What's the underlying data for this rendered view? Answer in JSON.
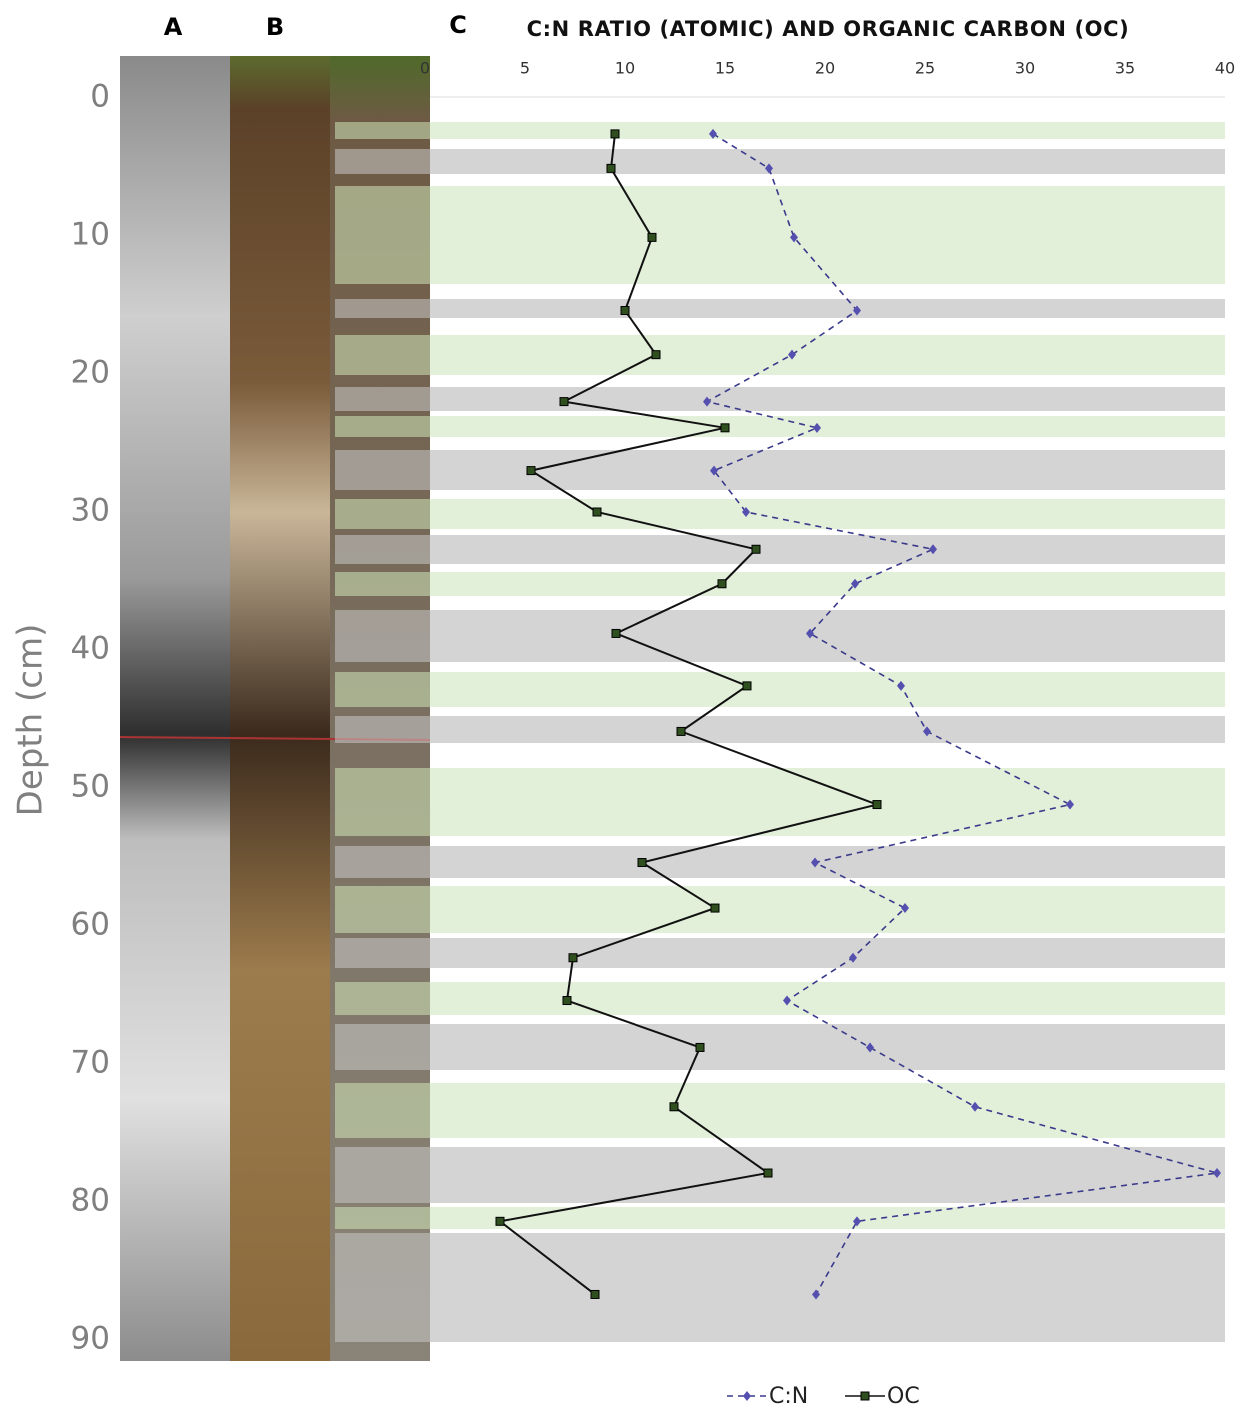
{
  "panel_labels": [
    "A",
    "B",
    "C"
  ],
  "chart_data": {
    "type": "line",
    "title": "C:N RATIO (ATOMIC) AND ORGANIC CARBON (OC)",
    "y_label": "Depth (cm)",
    "depth": [
      2.6,
      5.1,
      10.1,
      15.4,
      18.6,
      22.0,
      23.9,
      27.0,
      30.0,
      32.7,
      35.2,
      38.8,
      42.6,
      45.9,
      51.2,
      55.4,
      58.7,
      62.3,
      65.4,
      68.8,
      73.1,
      77.9,
      81.4,
      86.7
    ],
    "series": [
      {
        "name": "C:N",
        "color": "#3a3a8c",
        "line_style": "dashed",
        "marker": "diamond",
        "values": [
          14.4,
          17.2,
          18.45,
          21.6,
          18.35,
          14.1,
          19.6,
          14.45,
          16.05,
          25.4,
          21.5,
          19.25,
          23.8,
          25.1,
          32.25,
          19.5,
          24.0,
          21.4,
          18.1,
          22.25,
          27.5,
          39.6,
          21.6,
          19.55
        ]
      },
      {
        "name": "OC",
        "color": "#111111",
        "line_style": "solid",
        "marker": "square",
        "values": [
          9.5,
          9.3,
          11.35,
          10.0,
          11.55,
          6.95,
          15.0,
          5.3,
          8.6,
          16.55,
          14.85,
          9.55,
          16.1,
          12.8,
          22.6,
          10.85,
          14.5,
          7.4,
          7.1,
          13.75,
          12.45,
          17.15,
          3.75,
          8.5
        ]
      }
    ],
    "xlim": [
      0,
      40
    ],
    "xticks": [
      0,
      5,
      10,
      15,
      20,
      25,
      30,
      35,
      40
    ],
    "ylim": [
      0,
      90
    ],
    "yticks": [
      0,
      10,
      20,
      30,
      40,
      50,
      60,
      70,
      80,
      90
    ],
    "y_inverted": true
  }
}
